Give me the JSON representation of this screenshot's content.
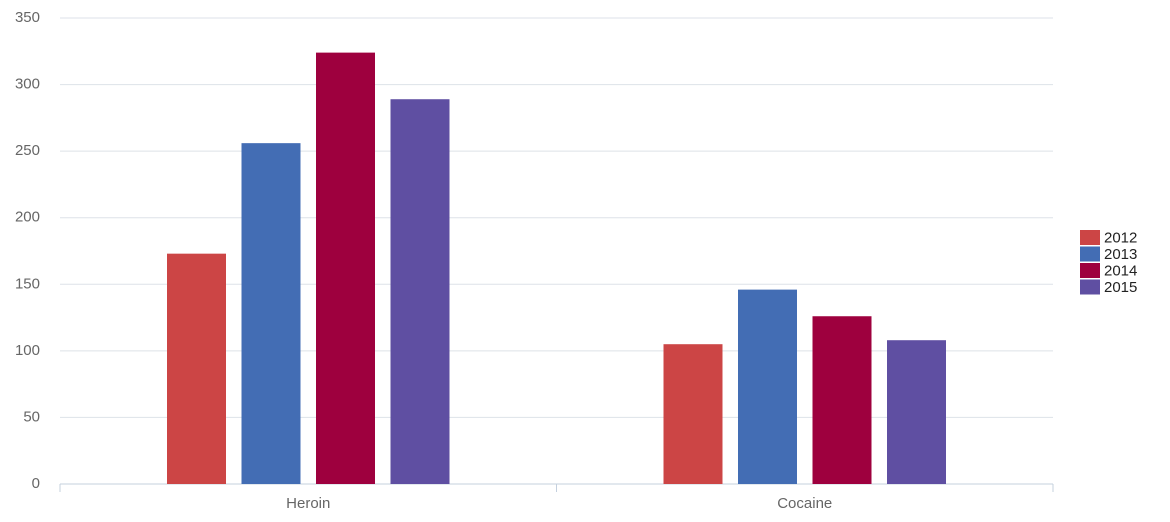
{
  "chart_data": {
    "type": "bar",
    "categories": [
      "Heroin",
      "Cocaine"
    ],
    "series": [
      {
        "name": "2012",
        "color": "#cc4545",
        "values": [
          173,
          105
        ]
      },
      {
        "name": "2013",
        "color": "#436db4",
        "values": [
          256,
          146
        ]
      },
      {
        "name": "2014",
        "color": "#9e003e",
        "values": [
          324,
          126
        ]
      },
      {
        "name": "2015",
        "color": "#5f4fa2",
        "values": [
          289,
          108
        ]
      }
    ],
    "ylim": [
      0,
      350
    ],
    "yticks": [
      0,
      50,
      100,
      150,
      200,
      250,
      300,
      350
    ],
    "grid": true,
    "legend": "right"
  }
}
